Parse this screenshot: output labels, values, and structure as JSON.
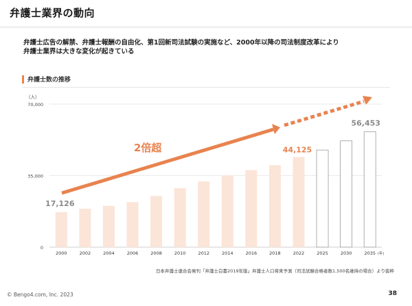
{
  "header": {
    "title": "弁護士業界の動向"
  },
  "lead": {
    "line1": "弁護士広告の解禁、弁護士報酬の自由化、第1回新司法試験の実施など、2000年以降の司法制度改革により",
    "line2": "弁護士業界は大きな変化が起きている"
  },
  "section": {
    "label": "弁護士数の推移"
  },
  "chart_data": {
    "type": "bar",
    "categories": [
      "2000",
      "2002",
      "2004",
      "2006",
      "2008",
      "2010",
      "2012",
      "2014",
      "2016",
      "2018",
      "2022",
      "2025",
      "2030",
      "2035"
    ],
    "values": [
      17126,
      18800,
      20200,
      22000,
      25000,
      28800,
      32100,
      35100,
      37700,
      40100,
      44125,
      47500,
      52000,
      56453
    ],
    "projected_from_index": 11,
    "ylim": [
      0,
      70000
    ],
    "y_ticks": [
      "0",
      "35,000",
      "70,000"
    ],
    "y_tick_values": [
      0,
      35000,
      70000
    ],
    "y_unit_label": "（人）",
    "x_unit_label": "(年)",
    "data_labels": {
      "first": "17,126",
      "actual_last": "44,125",
      "projected_last": "56,453"
    },
    "annotation": "2倍超",
    "grid": true,
    "colors": {
      "actual_bar": "#fbe5d8",
      "projected_bar_fill": "#ffffff",
      "projected_bar_stroke": "#9a9a9a",
      "arrow": "#e8834f",
      "highlight_label": "#e8834f",
      "muted_label": "#8a8a8a"
    }
  },
  "source": "日本弁護士連合会発刊「弁護士白書2019年版」弁護士人口将来予測（司法試験合格者数1,500名維持の場合）より抜粋",
  "footer": {
    "copyright": "© Bengo4.com, Inc. 2023",
    "page": "38"
  }
}
